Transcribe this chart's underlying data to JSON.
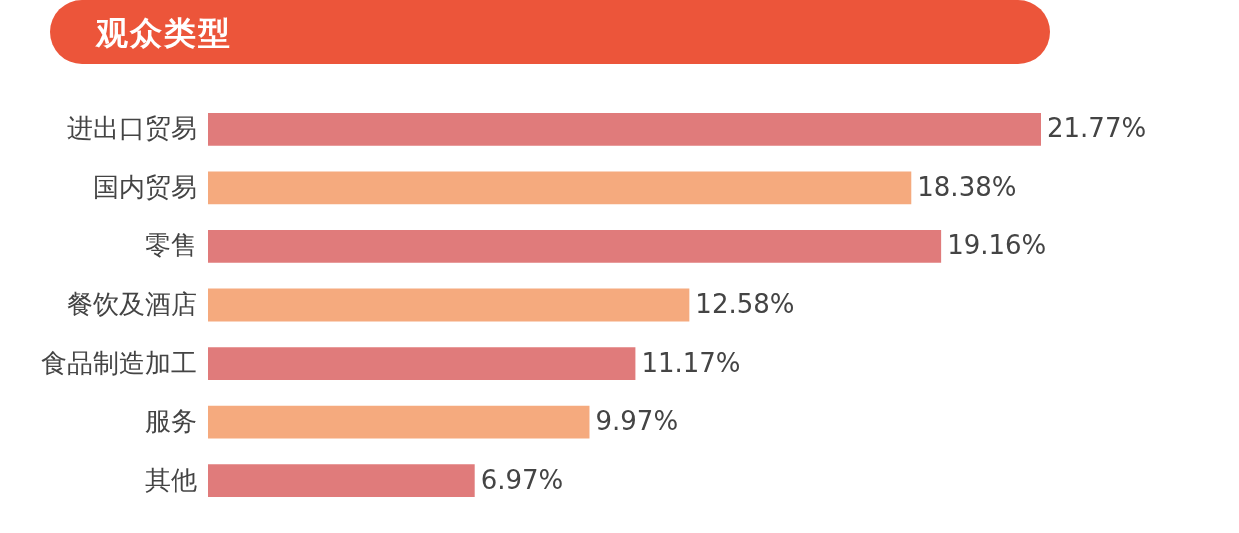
{
  "chart_data": {
    "type": "bar",
    "orientation": "horizontal",
    "title": "观众类型",
    "categories": [
      "进出口贸易",
      "国内贸易",
      "零售",
      "餐饮及酒店",
      "食品制造加工",
      "服务",
      "其他"
    ],
    "values": [
      21.77,
      18.38,
      19.16,
      12.58,
      11.17,
      9.97,
      6.97
    ],
    "value_labels": [
      "21.77%",
      "18.38%",
      "19.16%",
      "12.58%",
      "11.17%",
      "9.97%",
      "6.97%"
    ],
    "colors": [
      "#e07b7b",
      "#f5aa7e",
      "#e07b7b",
      "#f5aa7e",
      "#e07b7b",
      "#f5aa7e",
      "#e07b7b"
    ]
  }
}
